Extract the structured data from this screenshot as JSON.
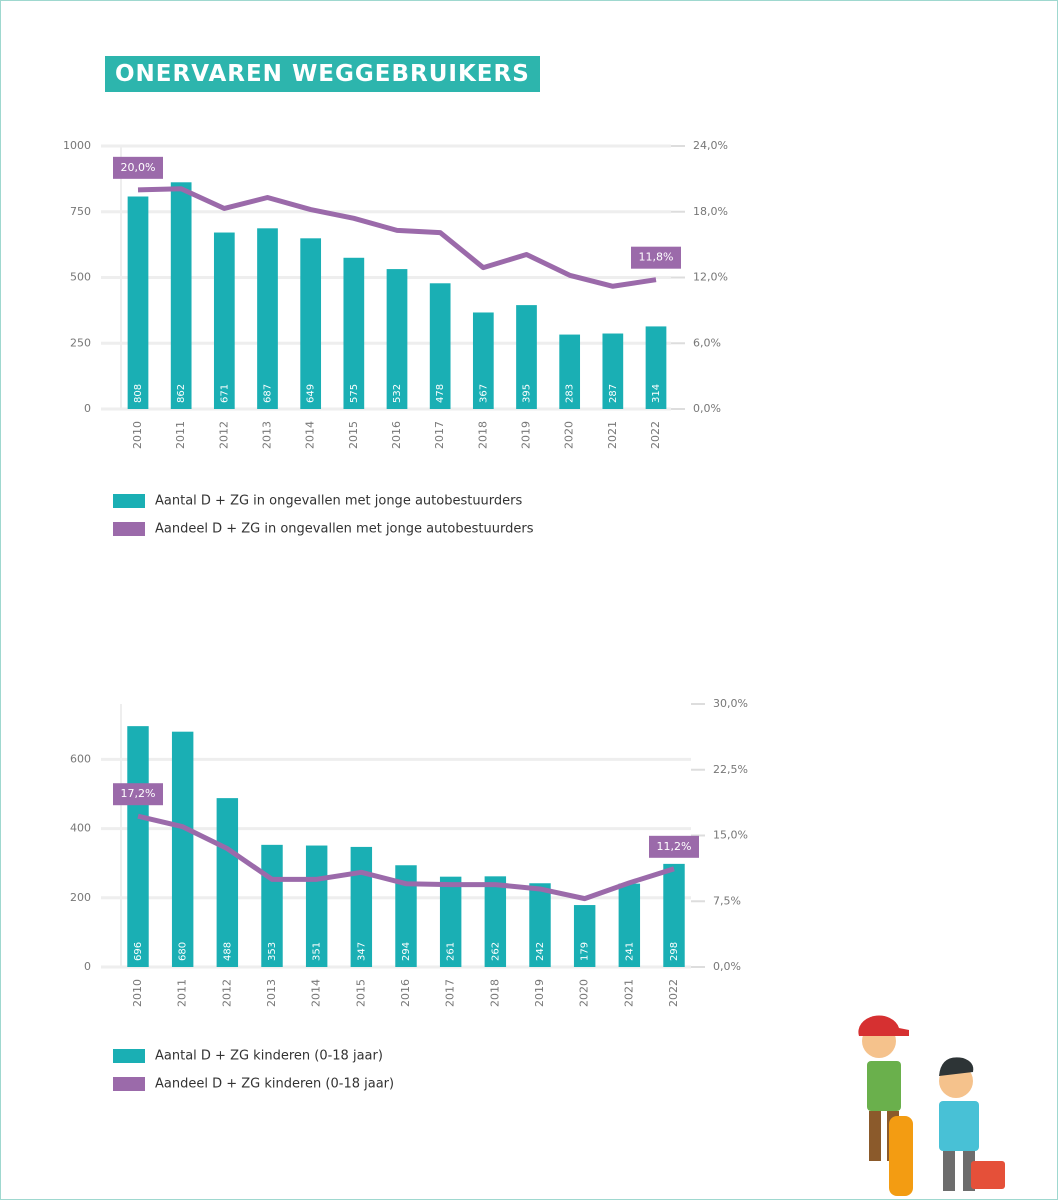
{
  "title": "ONERVAREN WEGGEBRUIKERS",
  "chart_data": [
    {
      "type": "bar-line",
      "categories": [
        "2010",
        "2011",
        "2012",
        "2013",
        "2014",
        "2015",
        "2016",
        "2017",
        "2018",
        "2019",
        "2020",
        "2021",
        "2022"
      ],
      "series": [
        {
          "name": "Aantal D + ZG in ongevallen met jonge autobestuurders",
          "color": "#1aafb4",
          "type": "bar",
          "values": [
            808,
            862,
            671,
            687,
            649,
            575,
            532,
            478,
            367,
            395,
            283,
            287,
            314
          ]
        },
        {
          "name": "Aandeel D + ZG in ongevallen met jonge autobestuurders",
          "color": "#9b6aaa",
          "type": "line",
          "axis": "y2",
          "values": [
            20.0,
            20.1,
            18.3,
            19.3,
            18.2,
            17.4,
            16.3,
            16.1,
            12.9,
            14.1,
            12.2,
            11.2,
            11.8
          ],
          "value_labels": [
            "20,0%",
            null,
            null,
            null,
            null,
            null,
            null,
            null,
            null,
            null,
            null,
            null,
            "11,8%"
          ]
        }
      ],
      "ylim": [
        0,
        1000
      ],
      "yticks": [
        0,
        250,
        500,
        750,
        1000
      ],
      "y2lim": [
        0,
        24
      ],
      "y2ticks": [
        {
          "value": 0,
          "label": "0,0%"
        },
        {
          "value": 6,
          "label": "6,0%"
        },
        {
          "value": 12,
          "label": "12,0%"
        },
        {
          "value": 18,
          "label": "18,0%"
        },
        {
          "value": 24,
          "label": "24,0%"
        }
      ],
      "grid": true
    },
    {
      "type": "bar-line",
      "categories": [
        "2010",
        "2011",
        "2012",
        "2013",
        "2014",
        "2015",
        "2016",
        "2017",
        "2018",
        "2019",
        "2020",
        "2021",
        "2022"
      ],
      "series": [
        {
          "name": "Aantal D + ZG kinderen (0-18 jaar)",
          "color": "#1aafb4",
          "type": "bar",
          "values": [
            696,
            680,
            488,
            353,
            351,
            347,
            294,
            261,
            262,
            242,
            179,
            241,
            298
          ]
        },
        {
          "name": "Aandeel D + ZG kinderen (0-18 jaar)",
          "color": "#9b6aaa",
          "type": "line",
          "axis": "y2",
          "values": [
            17.2,
            16.0,
            13.5,
            10.0,
            10.0,
            10.8,
            9.5,
            9.4,
            9.4,
            8.9,
            7.8,
            9.6,
            11.2
          ],
          "value_labels": [
            "17,2%",
            null,
            null,
            null,
            null,
            null,
            null,
            null,
            null,
            null,
            null,
            null,
            "11,2%"
          ]
        }
      ],
      "ylim": [
        0,
        760
      ],
      "yticks": [
        0,
        200,
        400,
        600
      ],
      "y2lim": [
        0,
        30
      ],
      "y2ticks": [
        {
          "value": 0,
          "label": "0,0%"
        },
        {
          "value": 7.5,
          "label": "7,5%"
        },
        {
          "value": 15,
          "label": "15,0%"
        },
        {
          "value": 22.5,
          "label": "22,5%"
        },
        {
          "value": 30,
          "label": "30,0%"
        }
      ],
      "grid": true
    }
  ]
}
